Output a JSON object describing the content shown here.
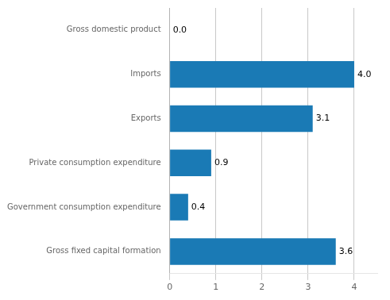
{
  "chart_data": {
    "type": "bar",
    "orientation": "horizontal",
    "categories": [
      "Gross fixed capital formation",
      "Government consumption expenditure",
      "Private consumption expenditure",
      "Exports",
      "Imports",
      "Gross domestic product"
    ],
    "values": [
      3.6,
      0.4,
      0.9,
      3.1,
      4.0,
      0.0
    ],
    "value_labels": [
      "3.6",
      "0.4",
      "0.9",
      "3.1",
      "4.0",
      "0.0"
    ],
    "data_labels": true,
    "color": "#1a7ab5",
    "xlim": [
      0,
      4.5
    ],
    "xticks": [
      0,
      1,
      2,
      3,
      4
    ],
    "grid": true
  }
}
